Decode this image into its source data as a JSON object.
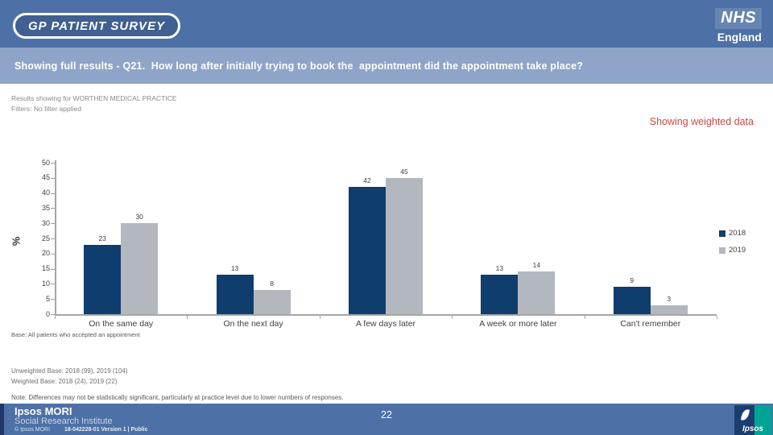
{
  "header": {
    "logo_text": "GP PATIENT SURVEY",
    "nhs_line1": "NHS",
    "nhs_line2": "England"
  },
  "title_bar": {
    "text": "Showing full results - Q21.  How long after initially trying to book the  appointment did the appointment take place?"
  },
  "meta": {
    "results_line": "Results showing for WORTHEN MEDICAL PRACTICE",
    "filters_line": "Filters: No filter applied",
    "weighted_note": "Showing weighted data"
  },
  "chart_data": {
    "type": "bar",
    "categories": [
      "On the same day",
      "On the next day",
      "A few days later",
      "A week or more later",
      "Can't remember"
    ],
    "series": [
      {
        "name": "2018",
        "color": "#0e3d6e",
        "values": [
          23,
          13,
          42,
          13,
          9
        ]
      },
      {
        "name": "2019",
        "color": "#b2b8bd",
        "values": [
          30,
          8,
          45,
          14,
          3
        ]
      }
    ],
    "title": "",
    "xlabel": "",
    "ylabel": "%",
    "ylim": [
      0,
      50
    ],
    "yticks": [
      0,
      5,
      10,
      15,
      20,
      25,
      30,
      35,
      40,
      45,
      50
    ],
    "grid": false,
    "legend_position": "right",
    "data_labels": true
  },
  "footnotes": {
    "base": "Base: All patients who accepted an appointment",
    "unweighted": "Unweighted Base: 2018 (99), 2019 (104)",
    "weighted": "Weighted Base: 2018 (24), 2019 (22)",
    "note": "Note: Differences may not be statistically significant, particularly at practice level due to lower numbers of responses."
  },
  "footer": {
    "brand_title": "Ipsos MORI",
    "brand_subtitle": "Social Research Institute",
    "copyright": "© Ipsos MORI",
    "doc_ref": "18-042228-01 Version 1 | Public",
    "page_number": "22",
    "ipsos_logo_text": "Ipsos"
  },
  "colors": {
    "header_bar": "#4d71a6",
    "title_bar": "#8ea4c8",
    "weighted_note_text": "#c64a45",
    "series_2018": "#0e3d6e",
    "series_2019": "#b2b8bd",
    "axis": "#a6a6a6"
  }
}
